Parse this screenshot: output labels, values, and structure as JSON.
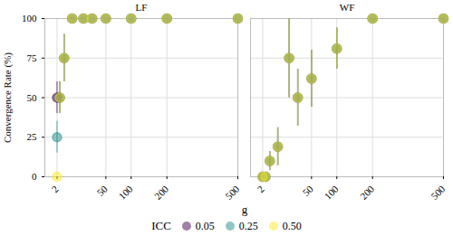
{
  "chart_data": {
    "type": "scatter",
    "x_label": "g",
    "y_label": "Convergence Rate (%)",
    "legend_title": "ICC",
    "legend": "bottom",
    "grid": true,
    "x": [
      2,
      3,
      5,
      10,
      20,
      30,
      50,
      100,
      200,
      500
    ],
    "xlim": [
      0,
      500
    ],
    "xticks": [
      2,
      50,
      100,
      200,
      500
    ],
    "ylim": [
      0,
      100
    ],
    "yticks": [
      0,
      25,
      50,
      75,
      100
    ],
    "panels": [
      {
        "title": "LF",
        "series": [
          {
            "name": "0.05",
            "color": "#440154",
            "values": [
              50,
              50,
              75,
              100,
              100,
              100,
              100,
              100,
              100,
              100
            ],
            "errors": [
              10,
              10,
              15,
              0,
              0,
              0,
              0,
              0,
              0,
              0
            ]
          },
          {
            "name": "0.25",
            "color": "#21908C",
            "values": [
              25,
              50,
              75,
              100,
              100,
              100,
              100,
              100,
              100,
              100
            ],
            "errors": [
              10,
              10,
              15,
              0,
              0,
              0,
              0,
              0,
              0,
              0
            ]
          },
          {
            "name": "0.50",
            "color": "#FDE725",
            "values": [
              0,
              50,
              75,
              100,
              100,
              100,
              100,
              100,
              100,
              100
            ],
            "errors": [
              0,
              10,
              15,
              0,
              0,
              0,
              0,
              0,
              0,
              0
            ]
          }
        ]
      },
      {
        "title": "WF",
        "series": [
          {
            "name": "0.05",
            "color": "#440154",
            "values": [
              0,
              0,
              10,
              19,
              75,
              50,
              62,
              81,
              100,
              100
            ],
            "errors": [
              0,
              0,
              6,
              12,
              25,
              18,
              18,
              13,
              0,
              0
            ]
          },
          {
            "name": "0.25",
            "color": "#21908C",
            "values": [
              0,
              0,
              10,
              19,
              75,
              50,
              62,
              81,
              100,
              100
            ],
            "errors": [
              0,
              0,
              6,
              12,
              25,
              18,
              18,
              13,
              0,
              0
            ]
          },
          {
            "name": "0.50",
            "color": "#FDE725",
            "values": [
              0,
              0,
              10,
              19,
              75,
              50,
              62,
              81,
              100,
              100
            ],
            "errors": [
              0,
              0,
              6,
              12,
              25,
              18,
              18,
              13,
              0,
              0
            ]
          }
        ]
      }
    ]
  }
}
